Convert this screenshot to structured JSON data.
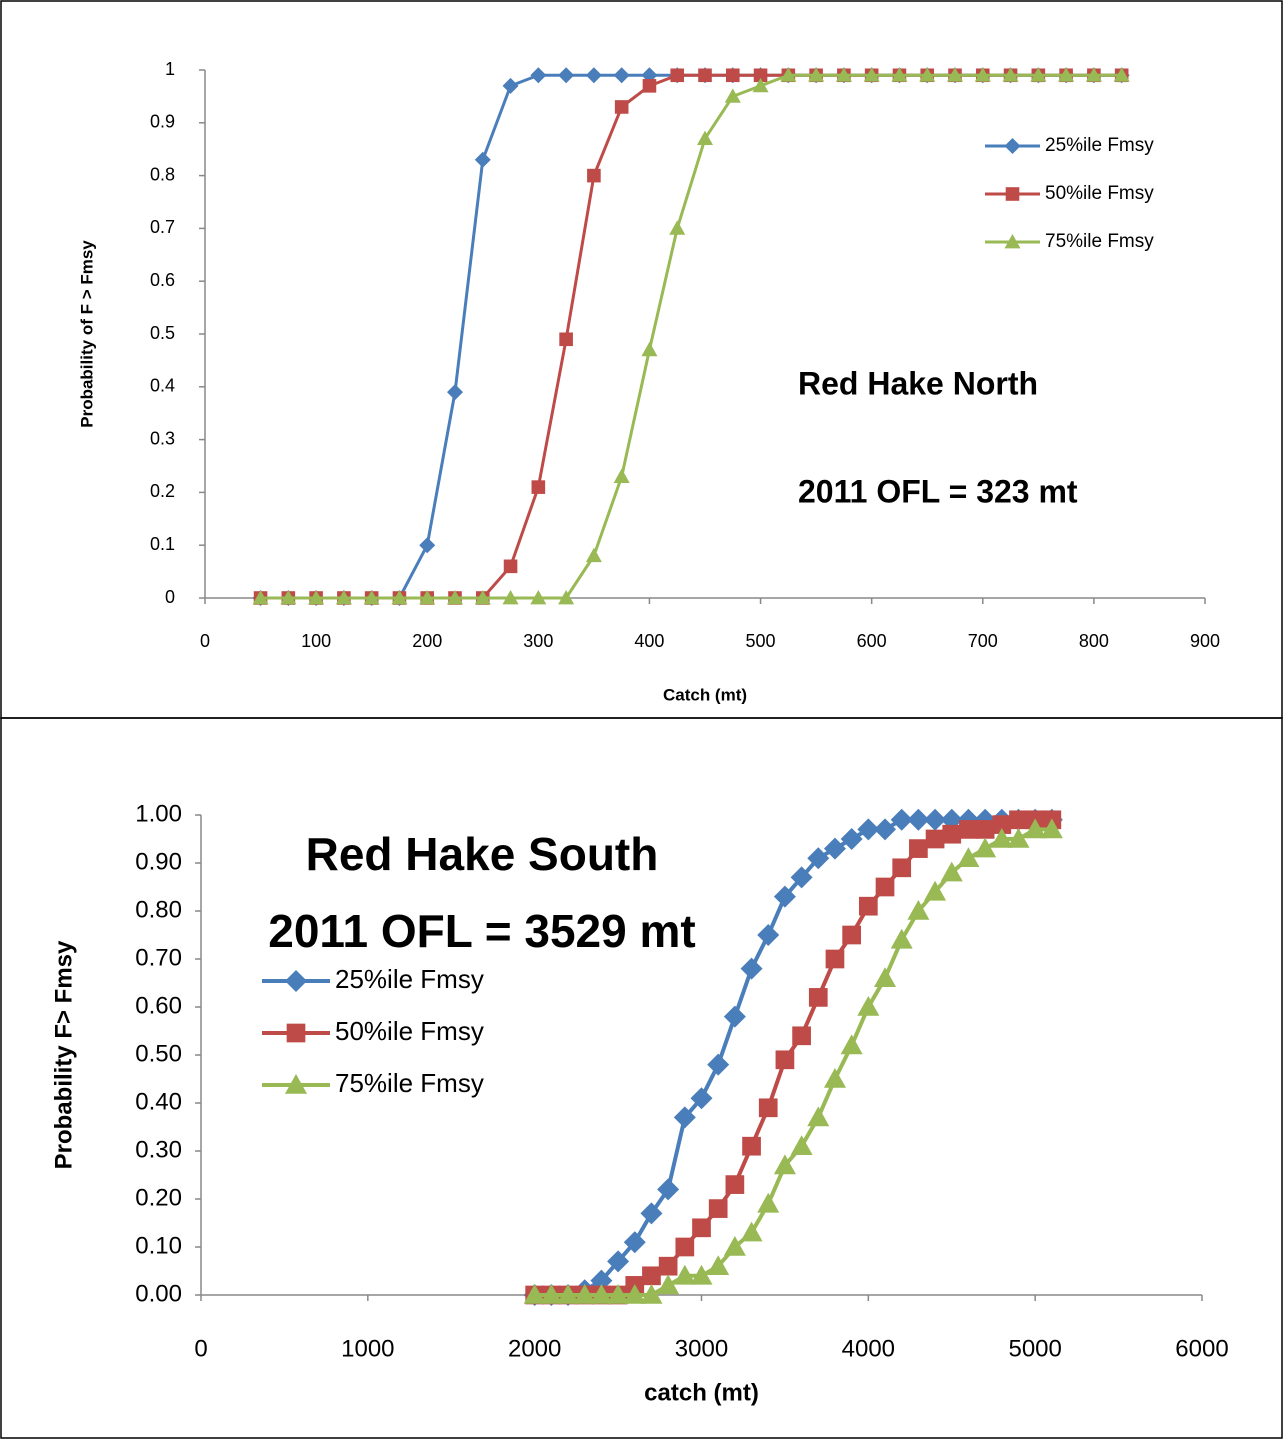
{
  "chart_data": [
    {
      "type": "line",
      "x": [
        50,
        75,
        100,
        125,
        150,
        175,
        200,
        225,
        250,
        275,
        300,
        325,
        350,
        375,
        400,
        425,
        450,
        475,
        500,
        525,
        550,
        575,
        600,
        625,
        650,
        675,
        700,
        725,
        750,
        775,
        800,
        825
      ],
      "series": [
        {
          "name": "25%ile Fmsy",
          "color": "#4a7ebb",
          "marker": "diamond",
          "values": [
            0,
            0,
            0,
            0,
            0,
            0,
            0.1,
            0.39,
            0.83,
            0.97,
            0.99,
            0.99,
            0.99,
            0.99,
            0.99,
            0.99,
            0.99,
            0.99,
            0.99,
            0.99,
            0.99,
            0.99,
            0.99,
            0.99,
            0.99,
            0.99,
            0.99,
            0.99,
            0.99,
            0.99,
            0.99,
            0.99
          ]
        },
        {
          "name": "50%ile Fmsy",
          "color": "#be4b48",
          "marker": "square",
          "values": [
            0,
            0,
            0,
            0,
            0,
            0,
            0,
            0,
            0,
            0.06,
            0.21,
            0.49,
            0.8,
            0.93,
            0.97,
            0.99,
            0.99,
            0.99,
            0.99,
            0.99,
            0.99,
            0.99,
            0.99,
            0.99,
            0.99,
            0.99,
            0.99,
            0.99,
            0.99,
            0.99,
            0.99,
            0.99
          ]
        },
        {
          "name": "75%ile Fmsy",
          "color": "#98b954",
          "marker": "triangle",
          "values": [
            0,
            0,
            0,
            0,
            0,
            0,
            0,
            0,
            0,
            0,
            0,
            0,
            0.08,
            0.23,
            0.47,
            0.7,
            0.87,
            0.95,
            0.97,
            0.99,
            0.99,
            0.99,
            0.99,
            0.99,
            0.99,
            0.99,
            0.99,
            0.99,
            0.99,
            0.99,
            0.99,
            0.99
          ]
        }
      ],
      "xlim": [
        0,
        900
      ],
      "xticks": [
        0,
        100,
        200,
        300,
        400,
        500,
        600,
        700,
        800,
        900
      ],
      "ylim": [
        0,
        1
      ],
      "yticks": [
        0,
        0.1,
        0.2,
        0.3,
        0.4,
        0.5,
        0.6,
        0.7,
        0.8,
        0.9,
        1
      ],
      "x_label": "Catch  (mt)",
      "y_label": "Probability of F > Fmsy",
      "annotations": [
        "Red Hake  North",
        "2011 OFL = 323 mt"
      ],
      "legend": "right",
      "grid": false
    },
    {
      "type": "line",
      "x": [
        2000,
        2100,
        2200,
        2300,
        2400,
        2500,
        2600,
        2700,
        2800,
        2900,
        3000,
        3100,
        3200,
        3300,
        3400,
        3500,
        3600,
        3700,
        3800,
        3900,
        4000,
        4100,
        4200,
        4300,
        4400,
        4500,
        4600,
        4700,
        4800,
        4900,
        5000,
        5100
      ],
      "series": [
        {
          "name": "25%ile Fmsy",
          "color": "#4a7ebb",
          "marker": "diamond",
          "values": [
            0,
            0,
            0,
            0.01,
            0.03,
            0.07,
            0.11,
            0.17,
            0.22,
            0.37,
            0.41,
            0.48,
            0.58,
            0.68,
            0.75,
            0.83,
            0.87,
            0.91,
            0.93,
            0.95,
            0.97,
            0.97,
            0.99,
            0.99,
            0.99,
            0.99,
            0.99,
            0.99,
            0.99,
            0.99,
            0.99,
            0.99
          ]
        },
        {
          "name": "50%ile Fmsy",
          "color": "#be4b48",
          "marker": "square",
          "values": [
            0,
            0,
            0,
            0,
            0,
            0,
            0.02,
            0.04,
            0.06,
            0.1,
            0.14,
            0.18,
            0.23,
            0.31,
            0.39,
            0.49,
            0.54,
            0.62,
            0.7,
            0.75,
            0.81,
            0.85,
            0.89,
            0.93,
            0.95,
            0.96,
            0.97,
            0.97,
            0.98,
            0.99,
            0.99,
            0.99
          ]
        },
        {
          "name": "75%ile Fmsy",
          "color": "#98b954",
          "marker": "triangle",
          "values": [
            0,
            0,
            0,
            0,
            0,
            0,
            0,
            0,
            0.02,
            0.04,
            0.04,
            0.06,
            0.1,
            0.13,
            0.19,
            0.27,
            0.31,
            0.37,
            0.45,
            0.52,
            0.6,
            0.66,
            0.74,
            0.8,
            0.84,
            0.88,
            0.91,
            0.93,
            0.95,
            0.95,
            0.97,
            0.97
          ]
        }
      ],
      "xlim": [
        0,
        6000
      ],
      "xticks": [
        0,
        1000,
        2000,
        3000,
        4000,
        5000,
        6000
      ],
      "ylim": [
        0,
        1
      ],
      "yticks": [
        {
          "value": 0,
          "label": "0.00"
        },
        {
          "value": 0.1,
          "label": "0.10"
        },
        {
          "value": 0.2,
          "label": "0.20"
        },
        {
          "value": 0.3,
          "label": "0.30"
        },
        {
          "value": 0.4,
          "label": "0.40"
        },
        {
          "value": 0.5,
          "label": "0.50"
        },
        {
          "value": 0.6,
          "label": "0.60"
        },
        {
          "value": 0.7,
          "label": "0.70"
        },
        {
          "value": 0.8,
          "label": "0.80"
        },
        {
          "value": 0.9,
          "label": "0.90"
        },
        {
          "value": 1,
          "label": "1.00"
        }
      ],
      "x_label": "catch  (mt)",
      "y_label": "Probability  F> Fmsy",
      "annotations": [
        "Red Hake South",
        "2011 OFL = 3529 mt"
      ],
      "legend": "left",
      "grid": false
    }
  ]
}
